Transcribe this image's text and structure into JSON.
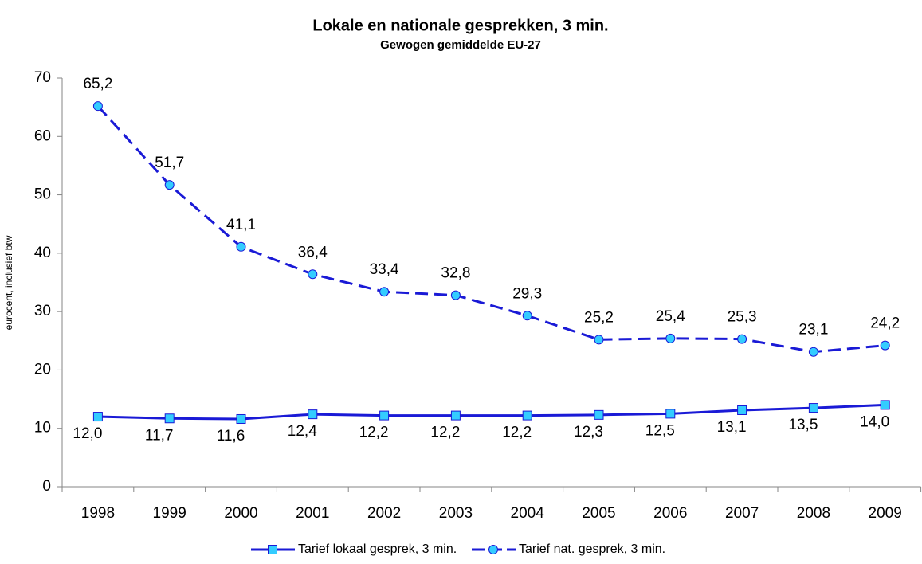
{
  "chart_data": {
    "type": "line",
    "title": "Lokale en nationale gesprekken, 3 min.",
    "subtitle": "Gewogen gemiddelde EU-27",
    "y_label": "eurocent, inclusief btw",
    "categories": [
      "1998",
      "1999",
      "2000",
      "2001",
      "2002",
      "2003",
      "2004",
      "2005",
      "2006",
      "2007",
      "2008",
      "2009"
    ],
    "series": [
      {
        "name": "Tarief lokaal gesprek, 3 min.",
        "color": "#1a1ad6",
        "marker_color": "#33ccff",
        "marker": "square",
        "dash": false,
        "values": [
          12.0,
          11.7,
          11.6,
          12.4,
          12.2,
          12.2,
          12.2,
          12.3,
          12.5,
          13.1,
          13.5,
          14.0
        ],
        "value_labels": [
          "12,0",
          "11,7",
          "11,6",
          "12,4",
          "12,2",
          "12,2",
          "12,2",
          "12,3",
          "12,5",
          "13,1",
          "13,5",
          "14,0"
        ]
      },
      {
        "name": "Tarief nat. gesprek, 3 min.",
        "color": "#1a1ad6",
        "marker_color": "#33ccff",
        "marker": "circle",
        "dash": true,
        "values": [
          65.2,
          51.7,
          41.1,
          36.4,
          33.4,
          32.8,
          29.3,
          25.2,
          25.4,
          25.3,
          23.1,
          24.2
        ],
        "value_labels": [
          "65,2",
          "51,7",
          "41,1",
          "36,4",
          "33,4",
          "32,8",
          "29,3",
          "25,2",
          "25,4",
          "25,3",
          "23,1",
          "24,2"
        ]
      }
    ],
    "ylim": [
      0,
      70
    ],
    "yticks": [
      0,
      10,
      20,
      30,
      40,
      50,
      60,
      70
    ],
    "grid": false,
    "legend": "bottom"
  }
}
